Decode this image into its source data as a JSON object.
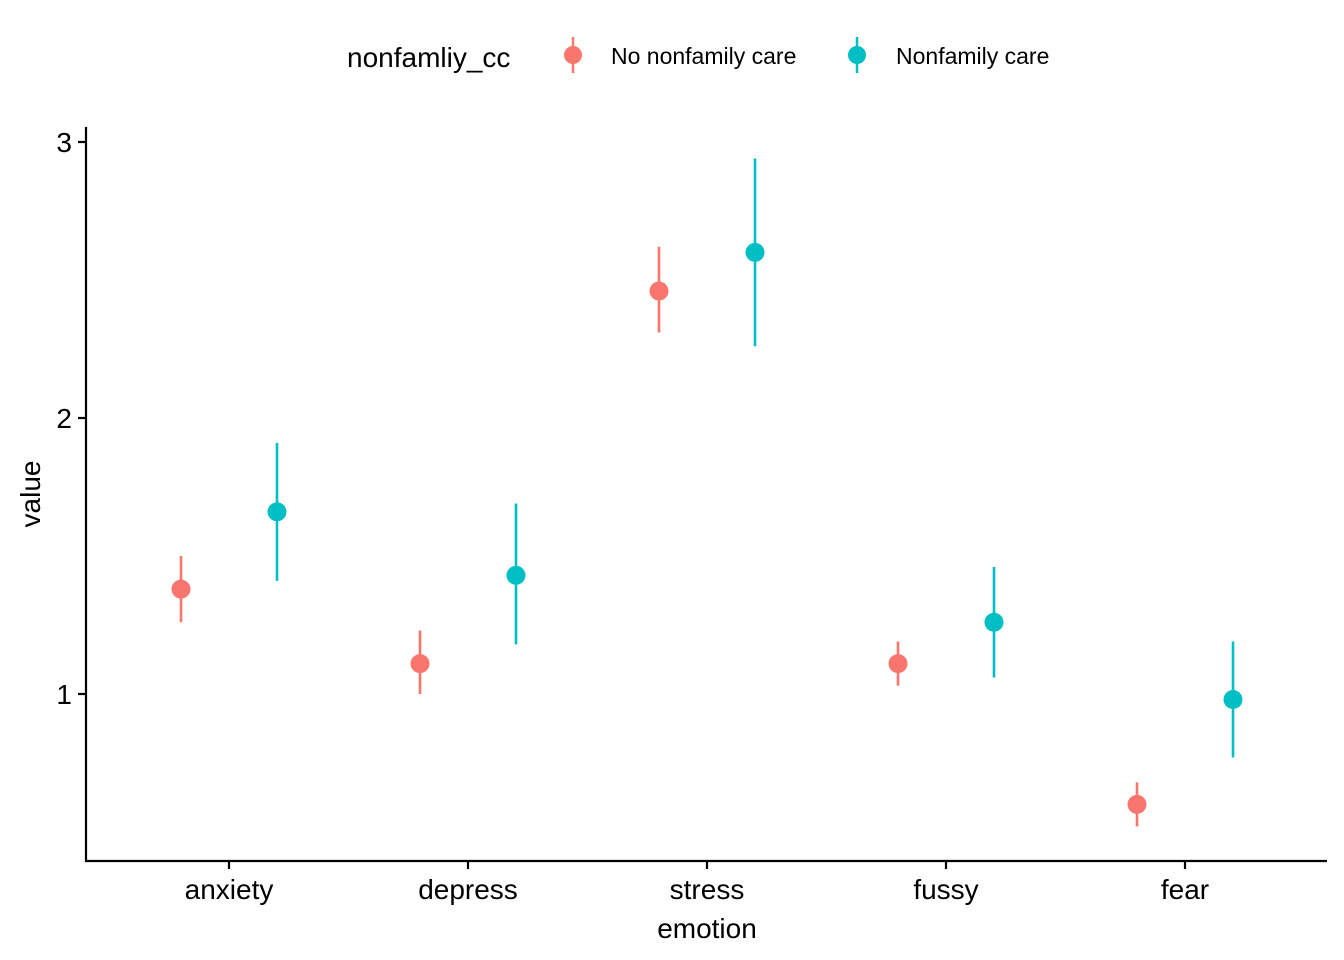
{
  "chart_data": {
    "type": "scatter",
    "subtype": "pointrange",
    "title": "",
    "xlabel": "emotion",
    "ylabel": "value",
    "categories": [
      "anxiety",
      "depress",
      "stress",
      "fussy",
      "fear"
    ],
    "ylim": [
      0.4,
      3.06
    ],
    "yticks": [
      1,
      2,
      3
    ],
    "grid": false,
    "legend": {
      "title": "nonfamliy_cc",
      "position": "top"
    },
    "series": [
      {
        "name": "No nonfamily care",
        "color": "#F8766D",
        "values": [
          1.38,
          1.11,
          2.46,
          1.11,
          0.6
        ],
        "lower": [
          1.26,
          1.0,
          2.31,
          1.03,
          0.52
        ],
        "upper": [
          1.5,
          1.23,
          2.62,
          1.19,
          0.68
        ]
      },
      {
        "name": "Nonfamily care",
        "color": "#00BFC4",
        "values": [
          1.66,
          1.43,
          2.6,
          1.26,
          0.98
        ],
        "lower": [
          1.41,
          1.18,
          2.26,
          1.06,
          0.77
        ],
        "upper": [
          1.91,
          1.69,
          2.94,
          1.46,
          1.19
        ]
      }
    ]
  }
}
